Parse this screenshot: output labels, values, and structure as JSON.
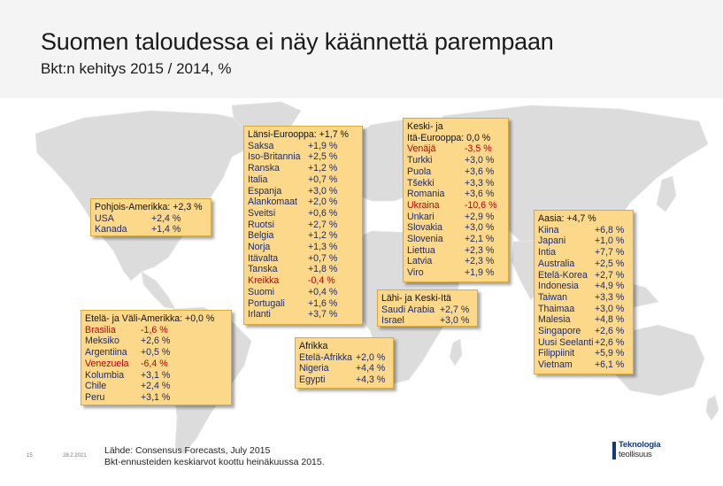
{
  "slide": {
    "title": "Suomen taloudessa ei näy käännettä parempaan",
    "subtitle": "Bkt:n kehitys 2015 / 2014, %",
    "slide_number": "15",
    "date": "28.2.2021"
  },
  "colors": {
    "box_fill": "#fcd98a",
    "negative_text": "#c0000c",
    "value_text": "#1e2a6a",
    "map_land": "#dcdcdc"
  },
  "regions": {
    "north_america": {
      "header": "Pohjois-Amerikka: +2,3 %",
      "rows": [
        {
          "name": "USA",
          "value": "+2,4 %"
        },
        {
          "name": "Kanada",
          "value": "+1,4 %"
        }
      ]
    },
    "latin_america": {
      "header": "Etelä- ja Väli-Amerikka: +0,0 %",
      "rows": [
        {
          "name": "Brasilia",
          "value": "-1,6 %",
          "negative": true
        },
        {
          "name": "Meksiko",
          "value": "+2,6 %"
        },
        {
          "name": "Argentiina",
          "value": "+0,5 %"
        },
        {
          "name": "Venezuela",
          "value": "-6,4 %",
          "negative": true
        },
        {
          "name": "Kolumbia",
          "value": "+3,1 %"
        },
        {
          "name": "Chile",
          "value": "+2,4 %"
        },
        {
          "name": "Peru",
          "value": "+3,1 %"
        }
      ]
    },
    "western_europe": {
      "header": "Länsi-Eurooppa: +1,7 %",
      "rows": [
        {
          "name": "Saksa",
          "value": "+1,9 %"
        },
        {
          "name": "Iso-Britannia",
          "value": "+2,5 %"
        },
        {
          "name": "Ranska",
          "value": "+1,2 %"
        },
        {
          "name": "Italia",
          "value": "+0,7 %"
        },
        {
          "name": "Espanja",
          "value": "+3,0 %"
        },
        {
          "name": "Alankomaat",
          "value": "+2,0 %"
        },
        {
          "name": "Sveitsi",
          "value": "+0,6 %"
        },
        {
          "name": "Ruotsi",
          "value": "+2,7 %"
        },
        {
          "name": "Belgia",
          "value": "+1,2 %"
        },
        {
          "name": "Norja",
          "value": "+1,3 %"
        },
        {
          "name": "Itävalta",
          "value": "+0,7 %"
        },
        {
          "name": "Tanska",
          "value": "+1,8 %"
        },
        {
          "name": "Kreikka",
          "value": "-0,4 %",
          "negative": true
        },
        {
          "name": "Suomi",
          "value": "+0,4 %"
        },
        {
          "name": "Portugali",
          "value": "+1,6 %"
        },
        {
          "name": "Irlanti",
          "value": "+3,7 %"
        }
      ]
    },
    "eastern_europe": {
      "header_line1": "Keski- ja",
      "header_line2": "Itä-Eurooppa: 0,0 %",
      "rows": [
        {
          "name": "Venäjä",
          "value": "-3,5 %",
          "negative": true
        },
        {
          "name": "Turkki",
          "value": "+3,0 %"
        },
        {
          "name": "Puola",
          "value": "+3,6 %"
        },
        {
          "name": "Tšekki",
          "value": "+3,3 %"
        },
        {
          "name": "Romania",
          "value": "+3,6 %"
        },
        {
          "name": "Ukraina",
          "value": "-10,6 %",
          "negative": true
        },
        {
          "name": "Unkari",
          "value": "+2,9 %"
        },
        {
          "name": "Slovakia",
          "value": "+3,0 %"
        },
        {
          "name": "Slovenia",
          "value": "+2,1 %"
        },
        {
          "name": "Liettua",
          "value": "+2,3 %"
        },
        {
          "name": "Latvia",
          "value": "+2,3 %"
        },
        {
          "name": "Viro",
          "value": "+1,9 %"
        }
      ]
    },
    "middle_east": {
      "header": "Lähi- ja Keski-Itä",
      "rows": [
        {
          "name": "Saudi Arabia",
          "value": "+2,7 %"
        },
        {
          "name": "Israel",
          "value": "+3,0 %"
        }
      ]
    },
    "africa": {
      "header": "Afrikka",
      "rows": [
        {
          "name": "Etelä-Afrikka",
          "value": "+2,0 %"
        },
        {
          "name": "Nigeria",
          "value": "+4,4 %"
        },
        {
          "name": "Egypti",
          "value": "+4,3 %"
        }
      ]
    },
    "asia": {
      "header": "Aasia: +4,7 %",
      "rows": [
        {
          "name": "Kiina",
          "value": "+6,8 %"
        },
        {
          "name": "Japani",
          "value": "+1,0 %"
        },
        {
          "name": "Intia",
          "value": "+7,7 %"
        },
        {
          "name": "Australia",
          "value": "+2,5 %"
        },
        {
          "name": "Etelä-Korea",
          "value": "+2,7 %"
        },
        {
          "name": "Indonesia",
          "value": "+4,9 %"
        },
        {
          "name": "Taiwan",
          "value": "+3,3 %"
        },
        {
          "name": "Thaimaa",
          "value": "+3,0 %"
        },
        {
          "name": "Malesia",
          "value": "+4,8 %"
        },
        {
          "name": "Singapore",
          "value": "+2,6 %"
        },
        {
          "name": "Uusi Seelanti",
          "value": "+2,6 %"
        },
        {
          "name": "Filippiinit",
          "value": "+5,9 %"
        },
        {
          "name": "Vietnam",
          "value": "+6,1 %"
        }
      ]
    }
  },
  "source": {
    "line1": "Lähde: Consensus Forecasts, July 2015",
    "line2": "Bkt-ennusteiden keskiarvot koottu heinäkuussa 2015."
  },
  "logo": {
    "line1": "Teknologia",
    "line2": "teollisuus"
  }
}
